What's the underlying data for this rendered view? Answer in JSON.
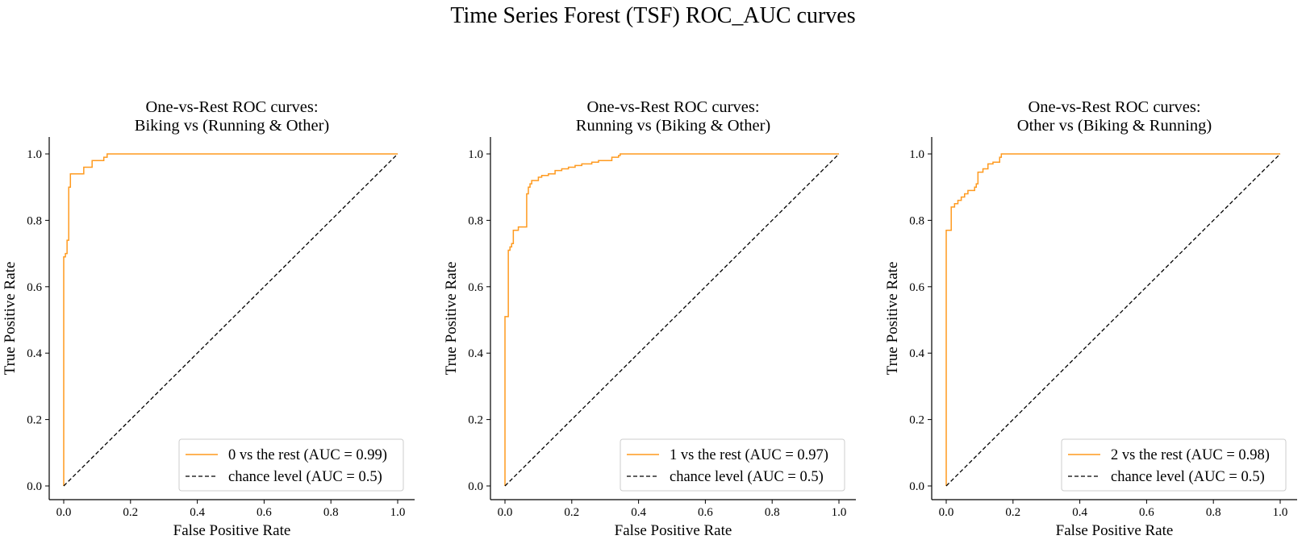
{
  "figure": {
    "title": "Time Series Forest (TSF) ROC_AUC curves"
  },
  "colors": {
    "roc_curve": "#ff9a1f",
    "chance_line": "#000000",
    "legend_border": "#cccccc"
  },
  "chart_data": [
    {
      "type": "line",
      "title_line1": "One-vs-Rest ROC curves:",
      "title_line2": "Biking vs (Running & Other)",
      "xlabel": "False Positive Rate",
      "ylabel": "True Positive Rate",
      "xlim": [
        0.0,
        1.0
      ],
      "ylim": [
        0.0,
        1.0
      ],
      "xticks": [
        "0.0",
        "0.2",
        "0.4",
        "0.6",
        "0.8",
        "1.0"
      ],
      "yticks": [
        "0.0",
        "0.2",
        "0.4",
        "0.6",
        "0.8",
        "1.0"
      ],
      "grid": false,
      "legend_position": "lower-right",
      "series": [
        {
          "name": "0 vs the rest (AUC = 0.99)",
          "style": "solid",
          "x": [
            0,
            0,
            0.005,
            0.005,
            0.01,
            0.01,
            0.015,
            0.015,
            0.02,
            0.02,
            0.035,
            0.035,
            0.06,
            0.06,
            0.085,
            0.085,
            0.12,
            0.12,
            0.13,
            0.13,
            1.0
          ],
          "y": [
            0,
            0.69,
            0.69,
            0.7,
            0.7,
            0.74,
            0.74,
            0.9,
            0.9,
            0.94,
            0.94,
            0.94,
            0.94,
            0.96,
            0.96,
            0.98,
            0.98,
            0.99,
            0.99,
            1.0,
            1.0
          ]
        },
        {
          "name": "chance level (AUC = 0.5)",
          "style": "dashed",
          "x": [
            0,
            1.0
          ],
          "y": [
            0,
            1.0
          ]
        }
      ]
    },
    {
      "type": "line",
      "title_line1": "One-vs-Rest ROC curves:",
      "title_line2": "Running vs (Biking & Other)",
      "xlabel": "False Positive Rate",
      "ylabel": "True Positive Rate",
      "xlim": [
        0.0,
        1.0
      ],
      "ylim": [
        0.0,
        1.0
      ],
      "xticks": [
        "0.0",
        "0.2",
        "0.4",
        "0.6",
        "0.8",
        "1.0"
      ],
      "yticks": [
        "0.0",
        "0.2",
        "0.4",
        "0.6",
        "0.8",
        "1.0"
      ],
      "grid": false,
      "legend_position": "lower-right",
      "series": [
        {
          "name": "1 vs the rest (AUC = 0.97)",
          "style": "solid",
          "x": [
            0,
            0,
            0.01,
            0.01,
            0.015,
            0.015,
            0.02,
            0.02,
            0.025,
            0.025,
            0.03,
            0.03,
            0.04,
            0.04,
            0.065,
            0.065,
            0.07,
            0.07,
            0.075,
            0.075,
            0.08,
            0.08,
            0.09,
            0.09,
            0.1,
            0.1,
            0.11,
            0.11,
            0.13,
            0.13,
            0.15,
            0.15,
            0.17,
            0.17,
            0.19,
            0.19,
            0.21,
            0.21,
            0.23,
            0.23,
            0.26,
            0.26,
            0.28,
            0.28,
            0.32,
            0.32,
            0.34,
            0.34,
            0.345,
            0.345,
            1.0
          ],
          "y": [
            0,
            0.51,
            0.51,
            0.71,
            0.71,
            0.72,
            0.72,
            0.73,
            0.73,
            0.77,
            0.77,
            0.77,
            0.77,
            0.78,
            0.78,
            0.88,
            0.88,
            0.9,
            0.9,
            0.91,
            0.91,
            0.92,
            0.92,
            0.92,
            0.92,
            0.93,
            0.93,
            0.935,
            0.935,
            0.94,
            0.94,
            0.95,
            0.95,
            0.955,
            0.955,
            0.96,
            0.96,
            0.965,
            0.965,
            0.97,
            0.97,
            0.975,
            0.975,
            0.98,
            0.98,
            0.99,
            0.99,
            0.995,
            0.995,
            1.0,
            1.0
          ]
        },
        {
          "name": "chance level (AUC = 0.5)",
          "style": "dashed",
          "x": [
            0,
            1.0
          ],
          "y": [
            0,
            1.0
          ]
        }
      ]
    },
    {
      "type": "line",
      "title_line1": "One-vs-Rest ROC curves:",
      "title_line2": "Other vs (Biking & Running)",
      "xlabel": "False Positive Rate",
      "ylabel": "True Positive Rate",
      "xlim": [
        0.0,
        1.0
      ],
      "ylim": [
        0.0,
        1.0
      ],
      "xticks": [
        "0.0",
        "0.2",
        "0.4",
        "0.6",
        "0.8",
        "1.0"
      ],
      "yticks": [
        "0.0",
        "0.2",
        "0.4",
        "0.6",
        "0.8",
        "1.0"
      ],
      "grid": false,
      "legend_position": "lower-right",
      "series": [
        {
          "name": "2 vs the rest (AUC = 0.98)",
          "style": "solid",
          "x": [
            0,
            0,
            0.015,
            0.015,
            0.025,
            0.025,
            0.035,
            0.035,
            0.045,
            0.045,
            0.055,
            0.055,
            0.065,
            0.065,
            0.075,
            0.075,
            0.085,
            0.085,
            0.09,
            0.09,
            0.095,
            0.095,
            0.11,
            0.11,
            0.125,
            0.125,
            0.14,
            0.14,
            0.16,
            0.16,
            0.165,
            0.165,
            1.0
          ],
          "y": [
            0,
            0.77,
            0.77,
            0.84,
            0.84,
            0.85,
            0.85,
            0.86,
            0.86,
            0.87,
            0.87,
            0.88,
            0.88,
            0.89,
            0.89,
            0.89,
            0.89,
            0.9,
            0.9,
            0.91,
            0.91,
            0.945,
            0.945,
            0.955,
            0.955,
            0.97,
            0.97,
            0.975,
            0.975,
            0.99,
            0.99,
            1.0,
            1.0
          ]
        },
        {
          "name": "chance level (AUC = 0.5)",
          "style": "dashed",
          "x": [
            0,
            1.0
          ],
          "y": [
            0,
            1.0
          ]
        }
      ]
    }
  ]
}
